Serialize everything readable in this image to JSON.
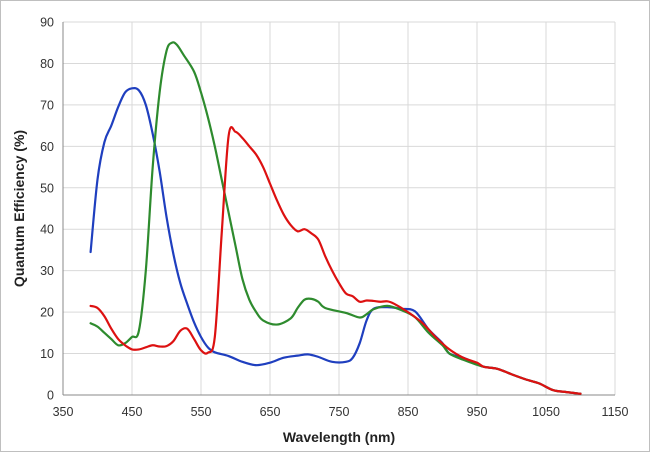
{
  "chart_data": {
    "type": "line",
    "title": "",
    "xlabel": "Wavelength (nm)",
    "ylabel": "Quantum Efficiency (%)",
    "xlim": [
      350,
      1150
    ],
    "ylim": [
      0,
      90
    ],
    "x_ticks": [
      350,
      450,
      550,
      650,
      750,
      850,
      950,
      1050,
      1150
    ],
    "y_ticks": [
      0,
      10,
      20,
      30,
      40,
      50,
      60,
      70,
      80,
      90
    ],
    "grid": true,
    "legend": "none",
    "series": [
      {
        "color": "#1f3fbf",
        "points": [
          [
            390,
            34.5
          ],
          [
            400,
            52
          ],
          [
            410,
            61
          ],
          [
            420,
            65
          ],
          [
            430,
            69.5
          ],
          [
            440,
            73
          ],
          [
            450,
            74
          ],
          [
            460,
            73.5
          ],
          [
            470,
            70
          ],
          [
            480,
            63
          ],
          [
            490,
            54
          ],
          [
            500,
            43
          ],
          [
            510,
            34
          ],
          [
            520,
            27
          ],
          [
            530,
            22
          ],
          [
            540,
            17.5
          ],
          [
            550,
            14
          ],
          [
            560,
            11.5
          ],
          [
            570,
            10.3
          ],
          [
            590,
            9.4
          ],
          [
            610,
            8
          ],
          [
            630,
            7.2
          ],
          [
            650,
            7.8
          ],
          [
            670,
            9
          ],
          [
            690,
            9.5
          ],
          [
            705,
            9.8
          ],
          [
            720,
            9.2
          ],
          [
            740,
            8
          ],
          [
            760,
            8
          ],
          [
            770,
            9
          ],
          [
            780,
            12.5
          ],
          [
            790,
            18
          ],
          [
            800,
            20.8
          ],
          [
            820,
            21.2
          ],
          [
            840,
            20.8
          ],
          [
            860,
            20.2
          ],
          [
            880,
            15.8
          ],
          [
            900,
            12.5
          ],
          [
            910,
            10
          ],
          [
            930,
            9
          ],
          [
            950,
            7.5
          ],
          [
            960,
            6.8
          ],
          [
            980,
            6.3
          ],
          [
            1000,
            5
          ],
          [
            1020,
            3.8
          ],
          [
            1040,
            2.8
          ],
          [
            1060,
            1.2
          ],
          [
            1080,
            0.7
          ],
          [
            1100,
            0.3
          ]
        ]
      },
      {
        "color": "#2e8b2e",
        "points": [
          [
            390,
            17.3
          ],
          [
            400,
            16.5
          ],
          [
            410,
            15
          ],
          [
            420,
            13.5
          ],
          [
            430,
            12
          ],
          [
            440,
            12.5
          ],
          [
            450,
            14
          ],
          [
            460,
            15.5
          ],
          [
            470,
            30
          ],
          [
            480,
            55
          ],
          [
            490,
            73
          ],
          [
            500,
            83
          ],
          [
            508,
            85
          ],
          [
            515,
            84.5
          ],
          [
            525,
            82
          ],
          [
            540,
            78
          ],
          [
            550,
            73
          ],
          [
            560,
            67
          ],
          [
            570,
            60
          ],
          [
            580,
            52
          ],
          [
            590,
            44
          ],
          [
            600,
            36
          ],
          [
            610,
            28
          ],
          [
            620,
            23
          ],
          [
            630,
            20
          ],
          [
            640,
            18
          ],
          [
            660,
            17
          ],
          [
            680,
            18.5
          ],
          [
            690,
            21
          ],
          [
            700,
            23
          ],
          [
            710,
            23.2
          ],
          [
            720,
            22.5
          ],
          [
            730,
            21
          ],
          [
            760,
            19.8
          ],
          [
            780,
            18.7
          ],
          [
            790,
            19.5
          ],
          [
            800,
            20.7
          ],
          [
            820,
            21.5
          ],
          [
            840,
            20.5
          ],
          [
            860,
            18.8
          ],
          [
            880,
            15
          ],
          [
            900,
            12
          ],
          [
            910,
            10
          ],
          [
            930,
            8.5
          ],
          [
            950,
            7.3
          ],
          [
            960,
            6.8
          ],
          [
            980,
            6.3
          ],
          [
            1000,
            5
          ],
          [
            1020,
            3.8
          ],
          [
            1040,
            2.8
          ],
          [
            1060,
            1.2
          ],
          [
            1080,
            0.7
          ],
          [
            1100,
            0.3
          ]
        ]
      },
      {
        "color": "#dd1111",
        "points": [
          [
            390,
            21.5
          ],
          [
            400,
            21
          ],
          [
            410,
            19
          ],
          [
            420,
            16
          ],
          [
            430,
            13.5
          ],
          [
            440,
            12
          ],
          [
            450,
            11
          ],
          [
            460,
            11
          ],
          [
            470,
            11.5
          ],
          [
            480,
            12
          ],
          [
            490,
            11.7
          ],
          [
            500,
            11.8
          ],
          [
            510,
            13
          ],
          [
            520,
            15.5
          ],
          [
            530,
            16
          ],
          [
            540,
            13.5
          ],
          [
            550,
            10.8
          ],
          [
            560,
            10.2
          ],
          [
            570,
            14
          ],
          [
            580,
            39
          ],
          [
            590,
            62.5
          ],
          [
            600,
            63.5
          ],
          [
            610,
            62
          ],
          [
            620,
            60
          ],
          [
            630,
            58
          ],
          [
            640,
            55
          ],
          [
            650,
            51
          ],
          [
            660,
            47
          ],
          [
            670,
            43.5
          ],
          [
            680,
            41
          ],
          [
            690,
            39.5
          ],
          [
            700,
            40
          ],
          [
            710,
            39
          ],
          [
            720,
            37.5
          ],
          [
            730,
            33.5
          ],
          [
            740,
            30
          ],
          [
            750,
            27
          ],
          [
            760,
            24.5
          ],
          [
            770,
            23.8
          ],
          [
            780,
            22.5
          ],
          [
            790,
            22.8
          ],
          [
            800,
            22.7
          ],
          [
            810,
            22.5
          ],
          [
            820,
            22.6
          ],
          [
            830,
            22
          ],
          [
            850,
            20
          ],
          [
            870,
            17.5
          ],
          [
            890,
            14
          ],
          [
            910,
            11
          ],
          [
            930,
            9
          ],
          [
            950,
            7.8
          ],
          [
            960,
            6.8
          ],
          [
            980,
            6.3
          ],
          [
            1000,
            5
          ],
          [
            1020,
            3.8
          ],
          [
            1040,
            2.8
          ],
          [
            1060,
            1.2
          ],
          [
            1080,
            0.7
          ],
          [
            1100,
            0.3
          ]
        ]
      }
    ]
  }
}
